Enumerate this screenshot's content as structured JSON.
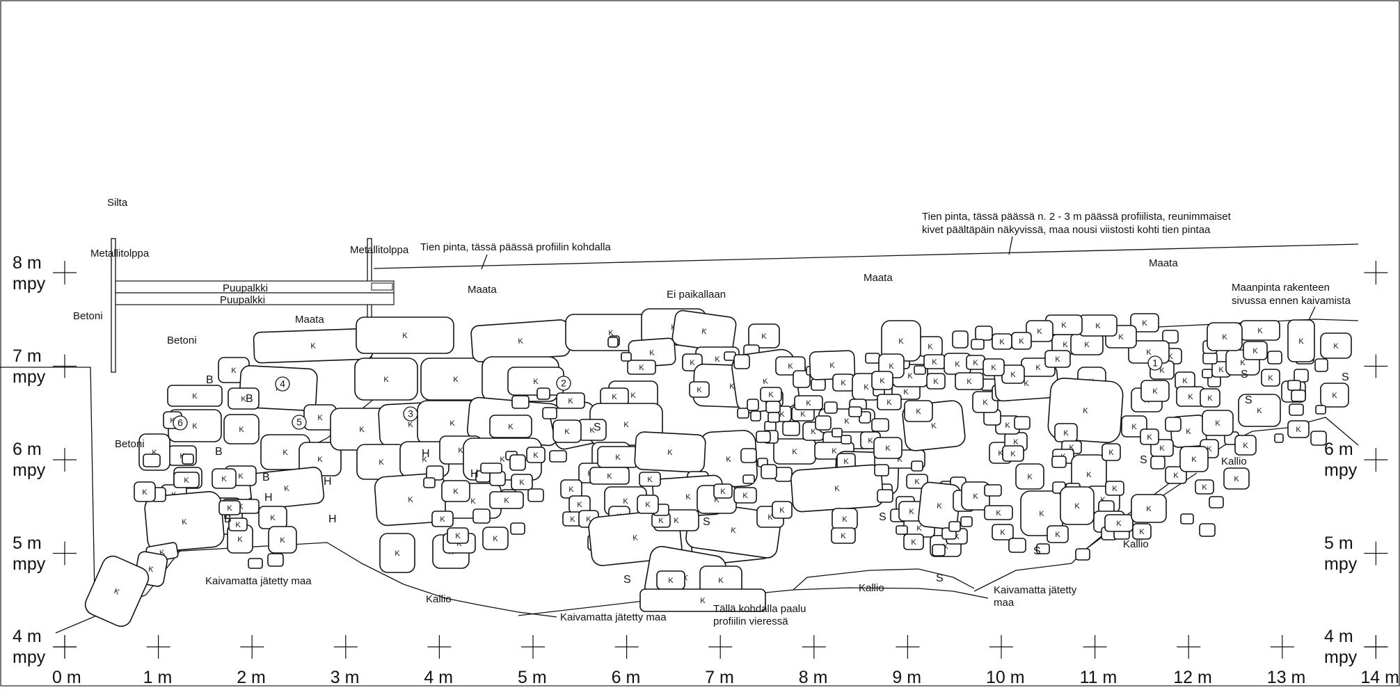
{
  "axis": {
    "x_ticks": [
      "0 m",
      "1 m",
      "2 m",
      "3 m",
      "4 m",
      "5 m",
      "6 m",
      "7 m",
      "8 m",
      "9 m",
      "10 m",
      "11 m",
      "12 m",
      "13 m",
      "14 m"
    ],
    "y_ticks_left": [
      {
        "value": "8 m",
        "unit": "mpy"
      },
      {
        "value": "7 m",
        "unit": "mpy"
      },
      {
        "value": "6 m",
        "unit": "mpy"
      },
      {
        "value": "5 m",
        "unit": "mpy"
      },
      {
        "value": "4 m",
        "unit": "mpy"
      }
    ],
    "y_ticks_right": [
      {
        "value": "6 m",
        "unit": "mpy"
      },
      {
        "value": "5 m",
        "unit": "mpy"
      },
      {
        "value": "4 m",
        "unit": "mpy"
      }
    ]
  },
  "labels": {
    "silta": "Silta",
    "metallitolppa_left": "Metallitolppa",
    "metallitolppa_right": "Metallitolppa",
    "tien_pinta_left": "Tien pinta, tässä päässä profiilin kohdalla",
    "tien_pinta_right_1": "Tien pinta, tässä päässä n. 2 - 3 m päässä profiilista, reunimmaiset",
    "tien_pinta_right_2": "kivet päältäpäin näkyvissä, maa nousi viistosti kohti tien pintaa",
    "puupalkki_1": "Puupalkki",
    "puupalkki_2": "Puupalkki",
    "betoni_1": "Betoni",
    "betoni_2": "Betoni",
    "betoni_3": "Betoni",
    "maata_1": "Maata",
    "maata_2": "Maata",
    "maata_3": "Maata",
    "maata_4": "Maata",
    "ei_paikallaan": "Ei paikallaan",
    "maanpinta_1": "Maanpinta rakenteen",
    "maanpinta_2": "sivussa ennen kaivamista",
    "kaivamatta_1": "Kaivamatta jätetty maa",
    "kaivamatta_2": "Kaivamatta jätetty maa",
    "kaivamatta_3a": "Kaivamatta jätetty",
    "kaivamatta_3b": "maa",
    "kallio_1": "Kallio",
    "kallio_2": "Kallio",
    "kallio_3": "Kallio",
    "kallio_4": "Kallio",
    "paalu_1": "Tällä kohdalla paalu",
    "paalu_2": "profiilin vieressä",
    "markers": [
      "1",
      "2",
      "3",
      "4",
      "5",
      "6"
    ],
    "stone_letter": "K",
    "soil_letters": [
      "S",
      "H",
      "B"
    ]
  }
}
